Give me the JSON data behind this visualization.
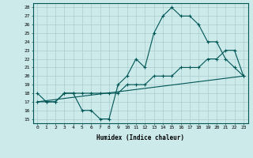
{
  "xlabel": "Humidex (Indice chaleur)",
  "background_color": "#cceaea",
  "grid_color": "#aacccc",
  "line_color": "#005555",
  "xlim": [
    -0.5,
    23.5
  ],
  "ylim": [
    14.5,
    28.5
  ],
  "yticks": [
    15,
    16,
    17,
    18,
    19,
    20,
    21,
    22,
    23,
    24,
    25,
    26,
    27,
    28
  ],
  "xticks": [
    0,
    1,
    2,
    3,
    4,
    5,
    6,
    7,
    8,
    9,
    10,
    11,
    12,
    13,
    14,
    15,
    16,
    17,
    18,
    19,
    20,
    21,
    22,
    23
  ],
  "line1_x": [
    0,
    1,
    2,
    3,
    4,
    5,
    6,
    7,
    8,
    9,
    10,
    11,
    12,
    13,
    14,
    15,
    16,
    17,
    18,
    19,
    20,
    21,
    22,
    23
  ],
  "line1_y": [
    18,
    17,
    17,
    18,
    18,
    16,
    16,
    15,
    15,
    19,
    20,
    22,
    21,
    25,
    27,
    28,
    27,
    27,
    26,
    24,
    24,
    22,
    21,
    20
  ],
  "line2_x": [
    0,
    1,
    2,
    3,
    4,
    5,
    6,
    7,
    8,
    9,
    10,
    11,
    12,
    13,
    14,
    15,
    16,
    17,
    18,
    19,
    20,
    21,
    22,
    23
  ],
  "line2_y": [
    17,
    17,
    17,
    18,
    18,
    18,
    18,
    18,
    18,
    18,
    19,
    19,
    19,
    20,
    20,
    20,
    21,
    21,
    21,
    22,
    22,
    23,
    23,
    20
  ],
  "line3_x": [
    0,
    23
  ],
  "line3_y": [
    17,
    20
  ]
}
